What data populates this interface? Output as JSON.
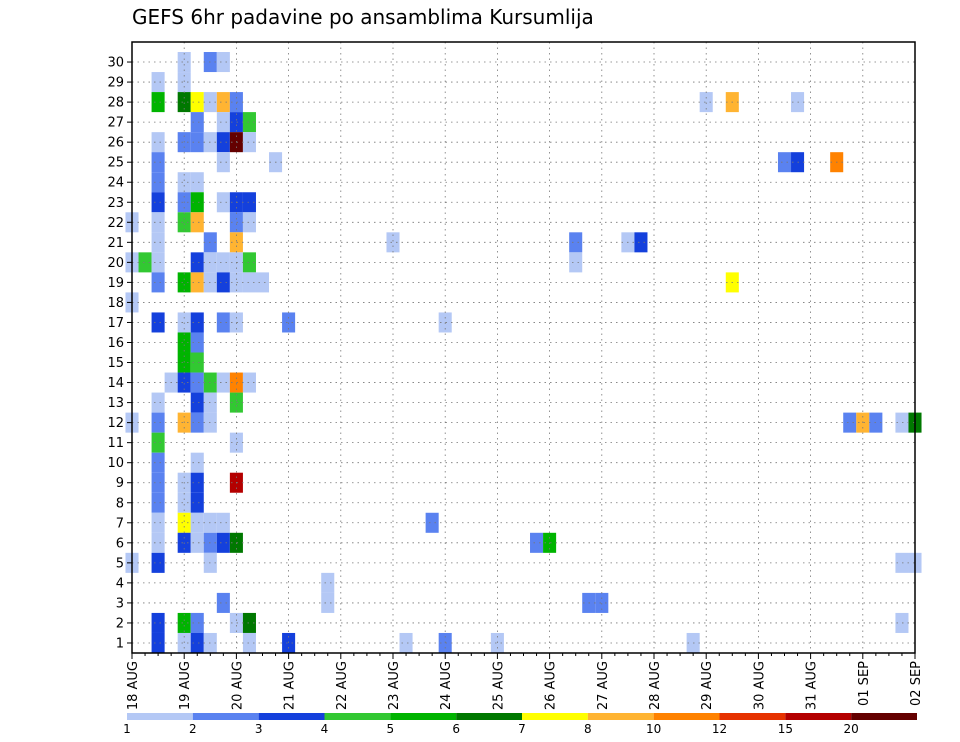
{
  "chart_data": {
    "type": "heatmap",
    "title": "GEFS 6hr padavine po ansamblima Kursumlija",
    "y_ticks": [
      1,
      2,
      3,
      4,
      5,
      6,
      7,
      8,
      9,
      10,
      11,
      12,
      13,
      14,
      15,
      16,
      17,
      18,
      19,
      20,
      21,
      22,
      23,
      24,
      25,
      26,
      27,
      28,
      29,
      30
    ],
    "x_ticks": [
      "18 AUG",
      "19 AUG",
      "20 AUG",
      "21 AUG",
      "22 AUG",
      "23 AUG",
      "24 AUG",
      "25 AUG",
      "26 AUG",
      "27 AUG",
      "28 AUG",
      "29 AUG",
      "30 AUG",
      "31 AUG",
      "01 SEP",
      "02 SEP"
    ],
    "x_step_count": 60,
    "steps_per_day": 4,
    "grid": true,
    "legend": {
      "placement": "bottom",
      "labels": [
        "1",
        "2",
        "3",
        "4",
        "5",
        "6",
        "7",
        "8",
        "10",
        "12",
        "15",
        "20"
      ],
      "colors": [
        "#b4c8f5",
        "#5a82f0",
        "#1440dc",
        "#32c832",
        "#00b400",
        "#007800",
        "#ffff00",
        "#ffb432",
        "#ff8200",
        "#e63200",
        "#b40000",
        "#640000"
      ]
    },
    "cells": [
      {
        "member": 30,
        "step": 4,
        "level": 0
      },
      {
        "member": 30,
        "step": 6,
        "level": 1
      },
      {
        "member": 30,
        "step": 7,
        "level": 0
      },
      {
        "member": 29,
        "step": 2,
        "level": 0
      },
      {
        "member": 29,
        "step": 4,
        "level": 0
      },
      {
        "member": 28,
        "step": 2,
        "level": 4
      },
      {
        "member": 28,
        "step": 4,
        "level": 5
      },
      {
        "member": 28,
        "step": 5,
        "level": 6
      },
      {
        "member": 28,
        "step": 6,
        "level": 0
      },
      {
        "member": 28,
        "step": 7,
        "level": 7
      },
      {
        "member": 28,
        "step": 8,
        "level": 1
      },
      {
        "member": 28,
        "step": 44,
        "level": 0
      },
      {
        "member": 28,
        "step": 46,
        "level": 7
      },
      {
        "member": 28,
        "step": 51,
        "level": 0
      },
      {
        "member": 27,
        "step": 5,
        "level": 1
      },
      {
        "member": 27,
        "step": 7,
        "level": 0
      },
      {
        "member": 27,
        "step": 8,
        "level": 2
      },
      {
        "member": 27,
        "step": 9,
        "level": 3
      },
      {
        "member": 26,
        "step": 2,
        "level": 0
      },
      {
        "member": 26,
        "step": 4,
        "level": 1
      },
      {
        "member": 26,
        "step": 5,
        "level": 1
      },
      {
        "member": 26,
        "step": 6,
        "level": 0
      },
      {
        "member": 26,
        "step": 7,
        "level": 2
      },
      {
        "member": 26,
        "step": 8,
        "level": 11
      },
      {
        "member": 26,
        "step": 9,
        "level": 0
      },
      {
        "member": 25,
        "step": 2,
        "level": 1
      },
      {
        "member": 25,
        "step": 7,
        "level": 0
      },
      {
        "member": 25,
        "step": 11,
        "level": 0
      },
      {
        "member": 25,
        "step": 50,
        "level": 1
      },
      {
        "member": 25,
        "step": 51,
        "level": 2
      },
      {
        "member": 25,
        "step": 54,
        "level": 8
      },
      {
        "member": 24,
        "step": 2,
        "level": 1
      },
      {
        "member": 24,
        "step": 4,
        "level": 0
      },
      {
        "member": 24,
        "step": 5,
        "level": 0
      },
      {
        "member": 23,
        "step": 2,
        "level": 2
      },
      {
        "member": 23,
        "step": 4,
        "level": 1
      },
      {
        "member": 23,
        "step": 5,
        "level": 4
      },
      {
        "member": 23,
        "step": 7,
        "level": 0
      },
      {
        "member": 23,
        "step": 8,
        "level": 2
      },
      {
        "member": 23,
        "step": 9,
        "level": 2
      },
      {
        "member": 22,
        "step": 0,
        "level": 0
      },
      {
        "member": 22,
        "step": 2,
        "level": 0
      },
      {
        "member": 22,
        "step": 4,
        "level": 3
      },
      {
        "member": 22,
        "step": 5,
        "level": 7
      },
      {
        "member": 22,
        "step": 8,
        "level": 1
      },
      {
        "member": 22,
        "step": 9,
        "level": 0
      },
      {
        "member": 21,
        "step": 2,
        "level": 0
      },
      {
        "member": 21,
        "step": 6,
        "level": 1
      },
      {
        "member": 21,
        "step": 8,
        "level": 7
      },
      {
        "member": 21,
        "step": 20,
        "level": 0
      },
      {
        "member": 21,
        "step": 34,
        "level": 1
      },
      {
        "member": 21,
        "step": 38,
        "level": 0
      },
      {
        "member": 21,
        "step": 39,
        "level": 2
      },
      {
        "member": 20,
        "step": 0,
        "level": 0
      },
      {
        "member": 20,
        "step": 1,
        "level": 3
      },
      {
        "member": 20,
        "step": 2,
        "level": 0
      },
      {
        "member": 20,
        "step": 5,
        "level": 2
      },
      {
        "member": 20,
        "step": 6,
        "level": 0
      },
      {
        "member": 20,
        "step": 7,
        "level": 0
      },
      {
        "member": 20,
        "step": 8,
        "level": 0
      },
      {
        "member": 20,
        "step": 9,
        "level": 3
      },
      {
        "member": 20,
        "step": 34,
        "level": 0
      },
      {
        "member": 19,
        "step": 2,
        "level": 1
      },
      {
        "member": 19,
        "step": 4,
        "level": 4
      },
      {
        "member": 19,
        "step": 5,
        "level": 7
      },
      {
        "member": 19,
        "step": 6,
        "level": 0
      },
      {
        "member": 19,
        "step": 7,
        "level": 2
      },
      {
        "member": 19,
        "step": 8,
        "level": 0
      },
      {
        "member": 19,
        "step": 9,
        "level": 0
      },
      {
        "member": 19,
        "step": 10,
        "level": 0
      },
      {
        "member": 19,
        "step": 46,
        "level": 6
      },
      {
        "member": 18,
        "step": 0,
        "level": 0
      },
      {
        "member": 17,
        "step": 2,
        "level": 2
      },
      {
        "member": 17,
        "step": 4,
        "level": 0
      },
      {
        "member": 17,
        "step": 5,
        "level": 2
      },
      {
        "member": 17,
        "step": 7,
        "level": 1
      },
      {
        "member": 17,
        "step": 8,
        "level": 0
      },
      {
        "member": 17,
        "step": 12,
        "level": 1
      },
      {
        "member": 17,
        "step": 24,
        "level": 0
      },
      {
        "member": 16,
        "step": 4,
        "level": 4
      },
      {
        "member": 16,
        "step": 5,
        "level": 1
      },
      {
        "member": 15,
        "step": 4,
        "level": 4
      },
      {
        "member": 15,
        "step": 5,
        "level": 3
      },
      {
        "member": 14,
        "step": 3,
        "level": 0
      },
      {
        "member": 14,
        "step": 4,
        "level": 2
      },
      {
        "member": 14,
        "step": 5,
        "level": 1
      },
      {
        "member": 14,
        "step": 6,
        "level": 3
      },
      {
        "member": 14,
        "step": 7,
        "level": 0
      },
      {
        "member": 14,
        "step": 8,
        "level": 8
      },
      {
        "member": 14,
        "step": 9,
        "level": 0
      },
      {
        "member": 13,
        "step": 2,
        "level": 0
      },
      {
        "member": 13,
        "step": 5,
        "level": 2
      },
      {
        "member": 13,
        "step": 6,
        "level": 0
      },
      {
        "member": 13,
        "step": 8,
        "level": 3
      },
      {
        "member": 12,
        "step": 0,
        "level": 0
      },
      {
        "member": 12,
        "step": 2,
        "level": 1
      },
      {
        "member": 12,
        "step": 4,
        "level": 7
      },
      {
        "member": 12,
        "step": 5,
        "level": 1
      },
      {
        "member": 12,
        "step": 6,
        "level": 0
      },
      {
        "member": 12,
        "step": 55,
        "level": 1
      },
      {
        "member": 12,
        "step": 56,
        "level": 7
      },
      {
        "member": 12,
        "step": 57,
        "level": 1
      },
      {
        "member": 12,
        "step": 59,
        "level": 0
      },
      {
        "member": 12,
        "step": 60,
        "level": 5
      },
      {
        "member": 11,
        "step": 2,
        "level": 3
      },
      {
        "member": 11,
        "step": 8,
        "level": 0
      },
      {
        "member": 10,
        "step": 2,
        "level": 1
      },
      {
        "member": 10,
        "step": 5,
        "level": 0
      },
      {
        "member": 9,
        "step": 2,
        "level": 1
      },
      {
        "member": 9,
        "step": 4,
        "level": 0
      },
      {
        "member": 9,
        "step": 5,
        "level": 2
      },
      {
        "member": 9,
        "step": 8,
        "level": 10
      },
      {
        "member": 8,
        "step": 2,
        "level": 1
      },
      {
        "member": 8,
        "step": 4,
        "level": 0
      },
      {
        "member": 8,
        "step": 5,
        "level": 2
      },
      {
        "member": 7,
        "step": 2,
        "level": 0
      },
      {
        "member": 7,
        "step": 4,
        "level": 6
      },
      {
        "member": 7,
        "step": 5,
        "level": 0
      },
      {
        "member": 7,
        "step": 6,
        "level": 0
      },
      {
        "member": 7,
        "step": 7,
        "level": 0
      },
      {
        "member": 7,
        "step": 23,
        "level": 1
      },
      {
        "member": 6,
        "step": 2,
        "level": 0
      },
      {
        "member": 6,
        "step": 4,
        "level": 2
      },
      {
        "member": 6,
        "step": 5,
        "level": 0
      },
      {
        "member": 6,
        "step": 6,
        "level": 1
      },
      {
        "member": 6,
        "step": 7,
        "level": 2
      },
      {
        "member": 6,
        "step": 8,
        "level": 5
      },
      {
        "member": 6,
        "step": 31,
        "level": 1
      },
      {
        "member": 6,
        "step": 32,
        "level": 4
      },
      {
        "member": 5,
        "step": 0,
        "level": 0
      },
      {
        "member": 5,
        "step": 2,
        "level": 2
      },
      {
        "member": 5,
        "step": 6,
        "level": 0
      },
      {
        "member": 5,
        "step": 59,
        "level": 0
      },
      {
        "member": 5,
        "step": 60,
        "level": 0
      },
      {
        "member": 4,
        "step": 15,
        "level": 0
      },
      {
        "member": 3,
        "step": 7,
        "level": 1
      },
      {
        "member": 3,
        "step": 15,
        "level": 0
      },
      {
        "member": 3,
        "step": 35,
        "level": 1
      },
      {
        "member": 3,
        "step": 36,
        "level": 1
      },
      {
        "member": 2,
        "step": 2,
        "level": 2
      },
      {
        "member": 2,
        "step": 4,
        "level": 4
      },
      {
        "member": 2,
        "step": 5,
        "level": 1
      },
      {
        "member": 2,
        "step": 8,
        "level": 0
      },
      {
        "member": 2,
        "step": 9,
        "level": 5
      },
      {
        "member": 2,
        "step": 59,
        "level": 0
      },
      {
        "member": 1,
        "step": 2,
        "level": 2
      },
      {
        "member": 1,
        "step": 4,
        "level": 0
      },
      {
        "member": 1,
        "step": 5,
        "level": 2
      },
      {
        "member": 1,
        "step": 6,
        "level": 0
      },
      {
        "member": 1,
        "step": 9,
        "level": 0
      },
      {
        "member": 1,
        "step": 12,
        "level": 2
      },
      {
        "member": 1,
        "step": 21,
        "level": 0
      },
      {
        "member": 1,
        "step": 24,
        "level": 1
      },
      {
        "member": 1,
        "step": 28,
        "level": 0
      },
      {
        "member": 1,
        "step": 43,
        "level": 0
      }
    ]
  }
}
